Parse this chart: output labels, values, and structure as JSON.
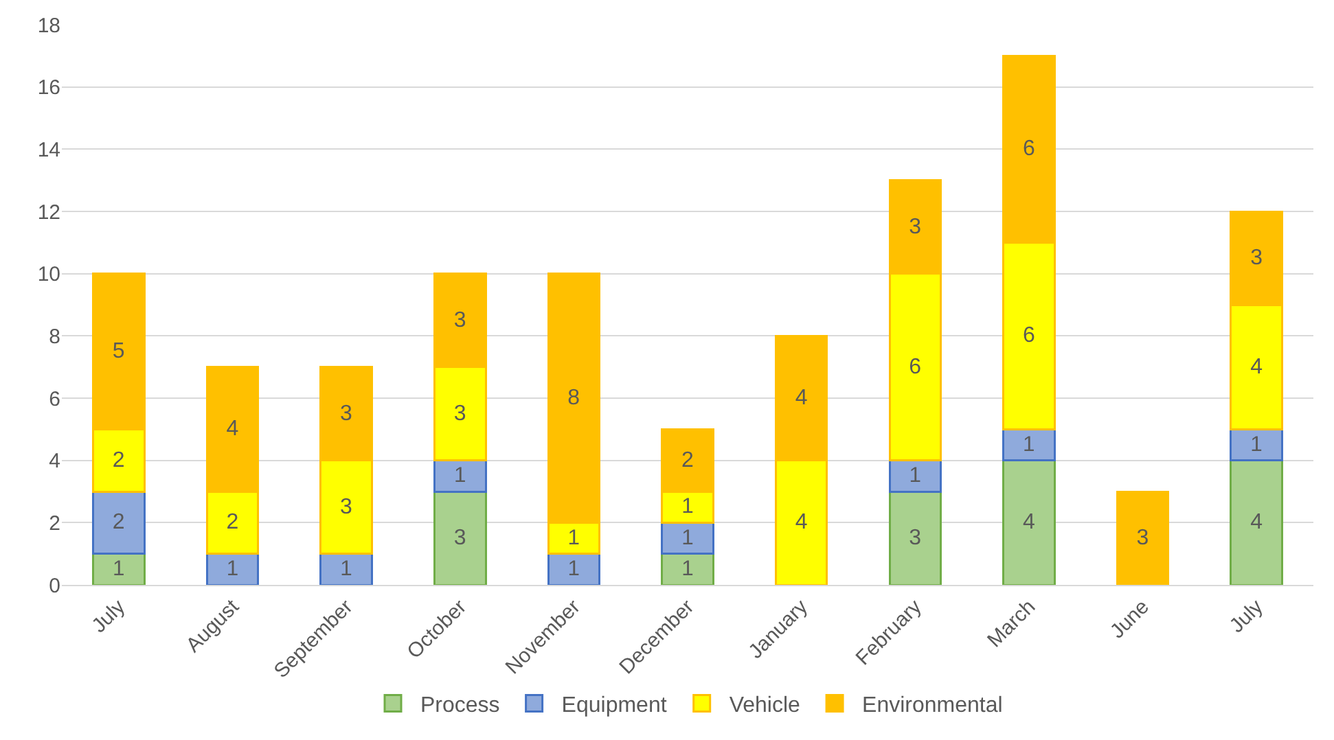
{
  "chart_data": {
    "type": "bar",
    "stacked": true,
    "data_labels": true,
    "grid": "y",
    "legend": "bottom",
    "categories": [
      "July",
      "August",
      "September",
      "October",
      "November",
      "December",
      "January",
      "February",
      "March",
      "June",
      "July"
    ],
    "series": [
      {
        "name": "Process",
        "color": "#a9d18e",
        "values": [
          1,
          null,
          null,
          3,
          null,
          1,
          null,
          3,
          4,
          null,
          4
        ]
      },
      {
        "name": "Equipment",
        "color": "#8faadc",
        "values": [
          2,
          1,
          1,
          1,
          1,
          1,
          null,
          1,
          1,
          null,
          1
        ]
      },
      {
        "name": "Vehicle",
        "color": "#ffff00",
        "values": [
          2,
          2,
          3,
          3,
          1,
          1,
          4,
          6,
          6,
          null,
          4
        ]
      },
      {
        "name": "Environmental",
        "color": "#ffc000",
        "values": [
          5,
          4,
          3,
          3,
          8,
          2,
          4,
          3,
          6,
          3,
          3
        ]
      }
    ],
    "ylim": [
      0,
      18
    ],
    "yticks": [
      0,
      2,
      4,
      6,
      8,
      10,
      12,
      14,
      16,
      18
    ]
  }
}
